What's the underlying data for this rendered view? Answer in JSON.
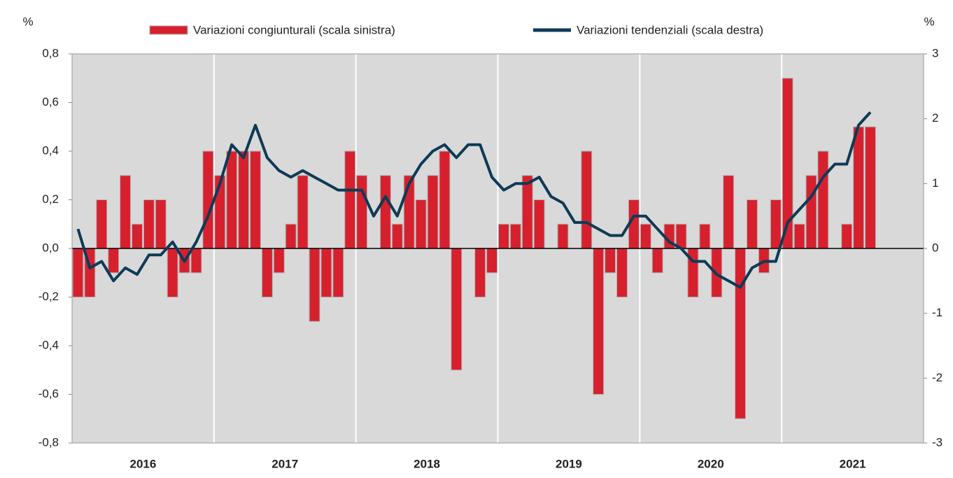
{
  "chart_data": {
    "type": "bar-line",
    "y_unit": "%",
    "y2_unit": "%",
    "categories": [
      null,
      null,
      null,
      null,
      null,
      null,
      null,
      null,
      null,
      null,
      null,
      null,
      null,
      null,
      null,
      null,
      null,
      null,
      null,
      null,
      null,
      null,
      null,
      null,
      null,
      null,
      null,
      null,
      null,
      null,
      null,
      null,
      null,
      null,
      null,
      null,
      null,
      null,
      null,
      null,
      null,
      null,
      null,
      null,
      null,
      null,
      null,
      null,
      null,
      null,
      null,
      null,
      null,
      null,
      null,
      null,
      null,
      null,
      null,
      null,
      null,
      null,
      null,
      null,
      null,
      null,
      null,
      null,
      null,
      null,
      null,
      null
    ],
    "years": [
      "2016",
      "2017",
      "2018",
      "2019",
      "2020",
      "2021"
    ],
    "series": [
      {
        "name": "Variazioni congiunturali (scala sinistra)",
        "type": "bar",
        "color": "#d7202e",
        "values": [
          -0.2,
          -0.2,
          0.2,
          -0.1,
          0.3,
          0.1,
          0.2,
          0.2,
          -0.2,
          -0.1,
          -0.1,
          0.4,
          0.3,
          0.4,
          0.4,
          0.4,
          -0.2,
          -0.1,
          0.1,
          0.3,
          -0.3,
          -0.2,
          -0.2,
          0.4,
          0.3,
          0,
          0.3,
          0.1,
          0.3,
          0.2,
          0.3,
          0.4,
          -0.5,
          0,
          -0.2,
          -0.1,
          0.1,
          0.1,
          0.3,
          0.2,
          0,
          0.1,
          0,
          0.4,
          -0.6,
          -0.1,
          -0.2,
          0.2,
          0.1,
          -0.1,
          0.1,
          0.1,
          -0.2,
          0.1,
          -0.2,
          0.3,
          -0.7,
          0.2,
          -0.1,
          0.2,
          0.7,
          0.1,
          0.3,
          0.4,
          0,
          0.1,
          0.5,
          0.5,
          null,
          null,
          null,
          null
        ]
      },
      {
        "name": "Variazioni tendenziali (scala destra)",
        "type": "line",
        "axis": "y2",
        "color": "#0d3a56",
        "values": [
          0.3,
          -0.3,
          -0.2,
          -0.5,
          -0.3,
          -0.4,
          -0.1,
          -0.1,
          0.1,
          -0.2,
          0.1,
          0.5,
          1.0,
          1.6,
          1.4,
          1.9,
          1.4,
          1.2,
          1.1,
          1.2,
          1.1,
          1.0,
          0.9,
          0.9,
          0.9,
          0.5,
          0.8,
          0.5,
          1.0,
          1.3,
          1.5,
          1.6,
          1.4,
          1.6,
          1.6,
          1.1,
          0.9,
          1.0,
          1.0,
          1.1,
          0.8,
          0.7,
          0.4,
          0.4,
          0.3,
          0.2,
          0.2,
          0.5,
          0.5,
          0.3,
          0.1,
          0.0,
          -0.2,
          -0.2,
          -0.4,
          -0.5,
          -0.6,
          -0.3,
          -0.2,
          -0.2,
          0.4,
          0.6,
          0.8,
          1.1,
          1.3,
          1.3,
          1.9,
          2.1,
          null,
          null,
          null,
          null
        ]
      }
    ],
    "ylim": [
      -0.8,
      0.8
    ],
    "yticks": [
      {
        "value": -0.8,
        "label": "-0,8"
      },
      {
        "value": -0.6,
        "label": "-0,6"
      },
      {
        "value": -0.4,
        "label": "-0,4"
      },
      {
        "value": -0.2,
        "label": "-0,2"
      },
      {
        "value": 0,
        "label": "0,0"
      },
      {
        "value": 0.2,
        "label": "0,2"
      },
      {
        "value": 0.4,
        "label": "0,4"
      },
      {
        "value": 0.6,
        "label": "0,6"
      },
      {
        "value": 0.8,
        "label": "0,8"
      }
    ],
    "y2lim": [
      -3,
      3
    ],
    "y2ticks": [
      -3,
      -2,
      -1,
      0,
      1,
      2,
      3
    ]
  }
}
